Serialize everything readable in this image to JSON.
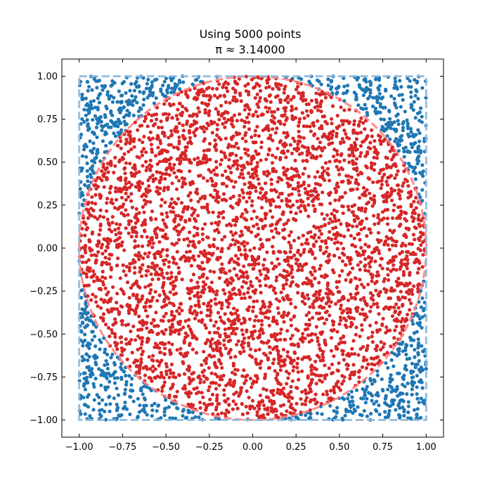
{
  "chart_data": {
    "type": "scatter",
    "title": "Using 5000 points",
    "subtitle": "π ≈ 3.14000",
    "xlim": [
      -1.1,
      1.1
    ],
    "ylim": [
      -1.1,
      1.1
    ],
    "x_ticks": [
      -1.0,
      -0.75,
      -0.5,
      -0.25,
      0.0,
      0.25,
      0.5,
      0.75,
      1.0
    ],
    "x_tick_labels": [
      "−1.00",
      "−0.75",
      "−0.50",
      "−0.25",
      "0.00",
      "0.25",
      "0.50",
      "0.75",
      "1.00"
    ],
    "y_ticks": [
      1.0,
      0.75,
      0.5,
      0.25,
      0.0,
      -0.25,
      -0.5,
      -0.75,
      -1.0
    ],
    "y_tick_labels": [
      "1.00",
      "0.75",
      "0.50",
      "0.25",
      "0.00",
      "−0.25",
      "−0.50",
      "−0.75",
      "−1.00"
    ],
    "grid": false,
    "n_points": 5000,
    "pi_estimate": 3.14,
    "series": [
      {
        "role": "inside",
        "color": "#d62728",
        "count": 3925,
        "region": "unit circle, radius 1"
      },
      {
        "role": "outside",
        "color": "#1f77b4",
        "count": 1075,
        "region": "square [-1,1]x[-1,1] outside circle"
      }
    ],
    "overlays": [
      {
        "shape": "circle",
        "center": [
          0,
          0
        ],
        "radius": 1,
        "color": "#ff7f7f",
        "style": "dashed"
      },
      {
        "shape": "square",
        "from": [
          -1,
          -1
        ],
        "to": [
          1,
          1
        ],
        "color": "#8fb8da",
        "style": "dashed"
      }
    ]
  }
}
